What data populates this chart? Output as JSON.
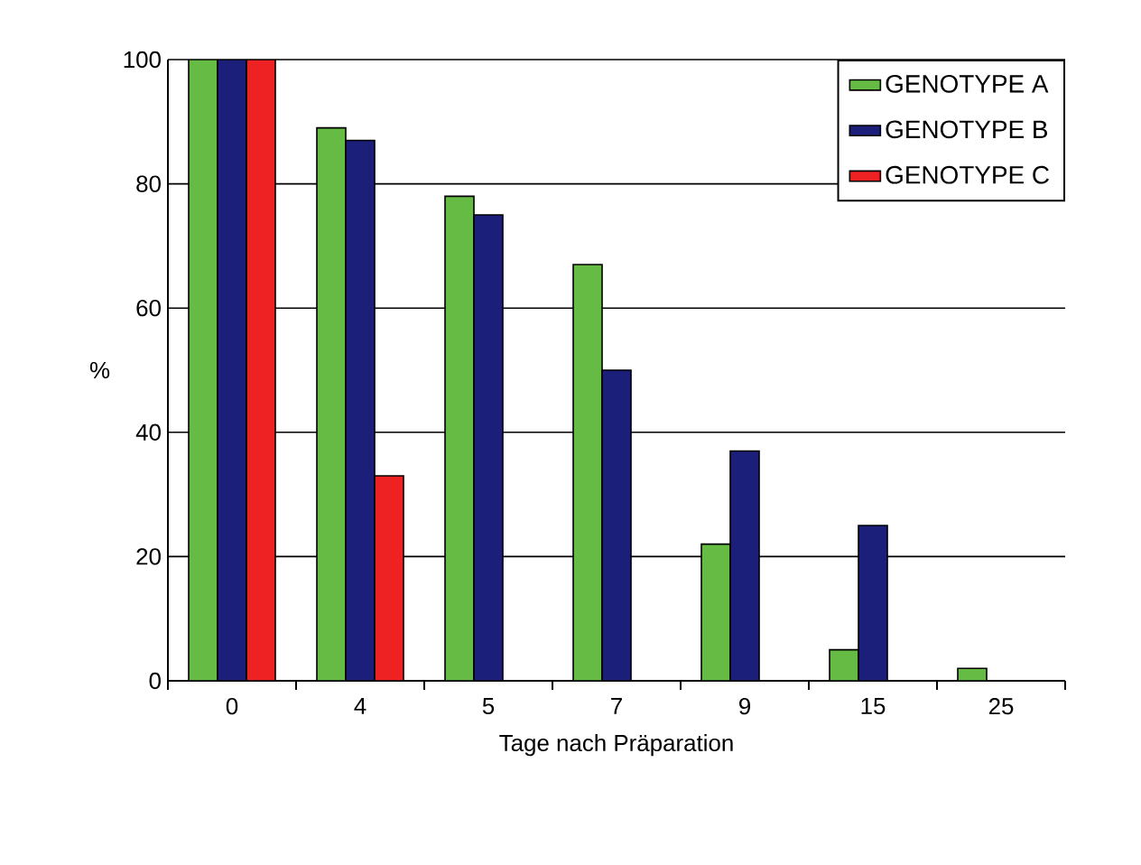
{
  "chart_data": {
    "type": "bar",
    "xlabel": "Tage nach Präparation",
    "ylabel": "%",
    "categories": [
      "0",
      "4",
      "5",
      "7",
      "9",
      "15",
      "25"
    ],
    "series": [
      {
        "name": "GENOTYPE A",
        "color": "#66bb44",
        "values": [
          100,
          89,
          78,
          67,
          22,
          5,
          2
        ]
      },
      {
        "name": "GENOTYPE B",
        "color": "#1c1f7a",
        "values": [
          100,
          87,
          75,
          50,
          37,
          25,
          null
        ]
      },
      {
        "name": "GENOTYPE C",
        "color": "#ee2222",
        "values": [
          100,
          33,
          null,
          null,
          null,
          null,
          null
        ]
      }
    ],
    "ylim": [
      0,
      100
    ],
    "yticks": [
      0,
      20,
      40,
      60,
      80,
      100
    ],
    "grid": "y",
    "legend": "top right"
  }
}
